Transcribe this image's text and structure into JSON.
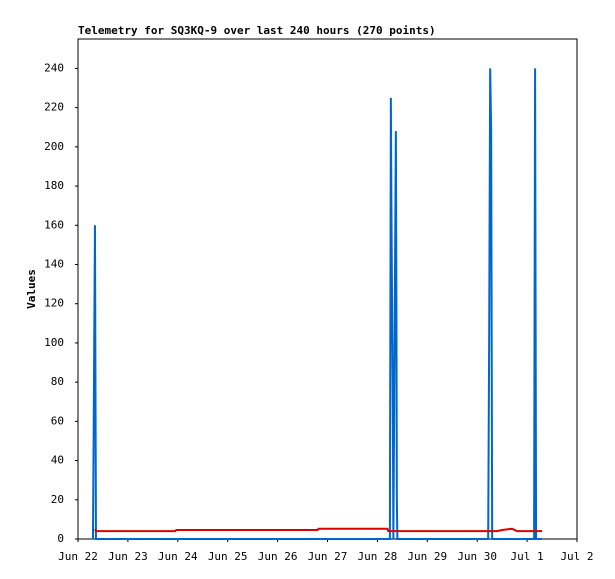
{
  "chart_data": {
    "type": "line",
    "title": "Telemetry for SQ3KQ-9 over last 240 hours (270 points)",
    "y_label": "Values",
    "xlim": [
      0,
      10
    ],
    "xticks": [
      {
        "value": 0,
        "label": "Jun 22"
      },
      {
        "value": 1,
        "label": "Jun 23"
      },
      {
        "value": 2,
        "label": "Jun 24"
      },
      {
        "value": 3,
        "label": "Jun 25"
      },
      {
        "value": 4,
        "label": "Jun 26"
      },
      {
        "value": 5,
        "label": "Jun 27"
      },
      {
        "value": 6,
        "label": "Jun 28"
      },
      {
        "value": 7,
        "label": "Jun 29"
      },
      {
        "value": 8,
        "label": "Jun 30"
      },
      {
        "value": 9,
        "label": "Jul 1"
      },
      {
        "value": 10,
        "label": "Jul 2"
      }
    ],
    "ylim": [
      0,
      255
    ],
    "yticks": [
      0,
      20,
      40,
      60,
      80,
      100,
      120,
      140,
      160,
      180,
      200,
      220,
      240
    ],
    "series": [
      {
        "color": "#0066cc",
        "x": [
          0.3,
          0.34,
          0.36,
          6.25,
          6.27,
          6.28,
          6.29,
          6.3,
          6.31,
          6.32,
          6.37,
          6.38,
          6.39,
          6.4,
          8.22,
          8.24,
          8.26,
          8.28,
          8.3,
          9.14,
          9.16,
          9.18,
          9.3
        ],
        "values": [
          0,
          160,
          0,
          0,
          225,
          173,
          135,
          97,
          58,
          0,
          208,
          128,
          20,
          0,
          0,
          104,
          240,
          208,
          0,
          0,
          240,
          0,
          0
        ]
      },
      {
        "color": "#dd0000",
        "x": [
          0.34,
          0.36,
          1.95,
          1.97,
          4.8,
          4.82,
          6.2,
          6.22,
          8.4,
          8.5,
          8.7,
          8.8,
          9.3
        ],
        "values": [
          5,
          4,
          4,
          4.6,
          4.6,
          5.2,
          5.2,
          4,
          4,
          4.6,
          5.2,
          4,
          4
        ]
      }
    ]
  }
}
